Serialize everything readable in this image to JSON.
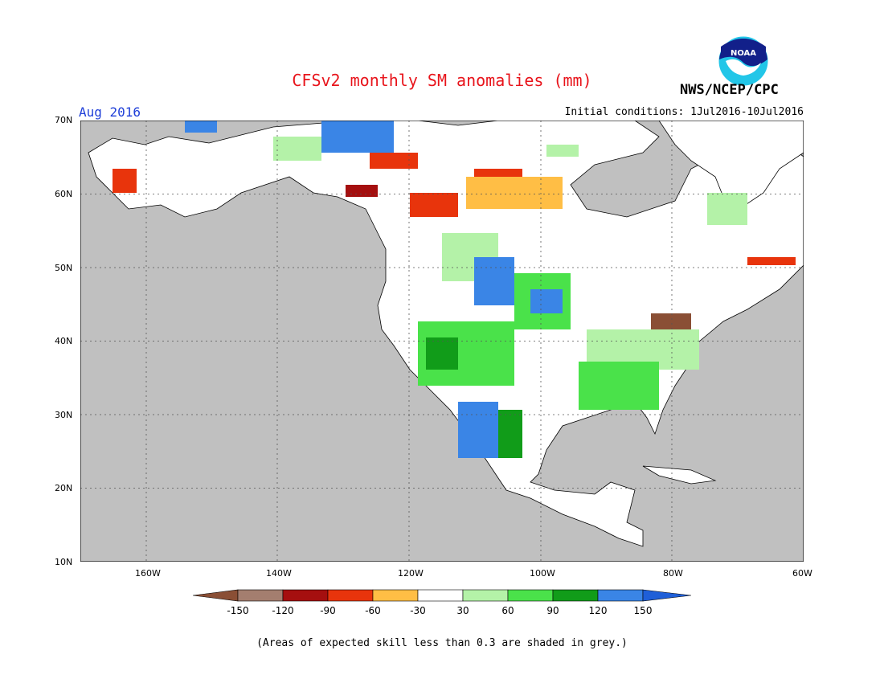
{
  "header": {
    "title": "CFSv2 monthly SM anomalies (mm)",
    "agency": "NWS/NCEP/CPC",
    "logo_text": "NOAA",
    "month": "Aug 2016",
    "initial_conditions": "Initial conditions: 1Jul2016-10Jul2016"
  },
  "map": {
    "lat_labels": [
      "70N",
      "60N",
      "50N",
      "40N",
      "30N",
      "20N",
      "10N"
    ],
    "lon_labels": [
      "160W",
      "140W",
      "120W",
      "100W",
      "80W",
      "60W"
    ],
    "extent": {
      "lon": [
        -170,
        -60
      ],
      "lat": [
        10,
        70
      ]
    },
    "grid": "dotted",
    "ocean_color": "#c0c0c0",
    "land_color": "#ffffff"
  },
  "legend": {
    "labels": [
      "-150",
      "-120",
      "-90",
      "-60",
      "-30",
      "30",
      "60",
      "90",
      "120",
      "150"
    ],
    "colors": [
      "#8a4f35",
      "#a47e6f",
      "#a50f0f",
      "#e8340c",
      "#ffbe45",
      "#ffffff",
      "#b4f2a8",
      "#4ae24a",
      "#119c19",
      "#3a85e6",
      "#1f5fd8"
    ]
  },
  "footnote": "(Areas of expected skill less than 0.3 are shaded in grey.)"
}
